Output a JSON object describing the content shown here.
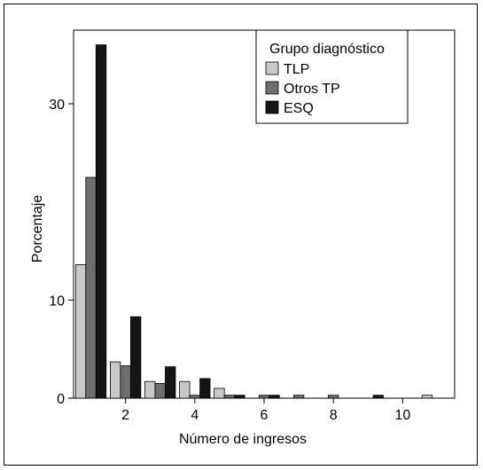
{
  "chart_data": {
    "type": "bar",
    "xlabel": "Número de ingresos",
    "ylabel": "Porcentaje",
    "x": [
      1,
      2,
      3,
      4,
      5,
      6,
      7,
      8,
      9,
      10,
      11
    ],
    "xlim": [
      0.5,
      11.5
    ],
    "ylim": [
      0,
      37.5
    ],
    "xticks": [
      2,
      4,
      6,
      8,
      10
    ],
    "yticks": [
      0,
      10,
      30
    ],
    "legend_title": "Grupo diagnóstico",
    "legend_position": "top-right",
    "series": [
      {
        "name": "TLP",
        "color": "#c8c8c8",
        "values": [
          13.6,
          3.7,
          1.7,
          1.7,
          1.0,
          0,
          0,
          0,
          0,
          0,
          0.3
        ]
      },
      {
        "name": "Otros TP",
        "color": "#6e6e6e",
        "values": [
          22.5,
          3.3,
          1.5,
          0.3,
          0.3,
          0.3,
          0.3,
          0.3,
          0,
          0,
          0
        ]
      },
      {
        "name": "ESQ",
        "color": "#151515",
        "values": [
          36.0,
          8.3,
          3.2,
          2.0,
          0.3,
          0.3,
          0,
          0,
          0.3,
          0,
          0
        ]
      }
    ]
  }
}
